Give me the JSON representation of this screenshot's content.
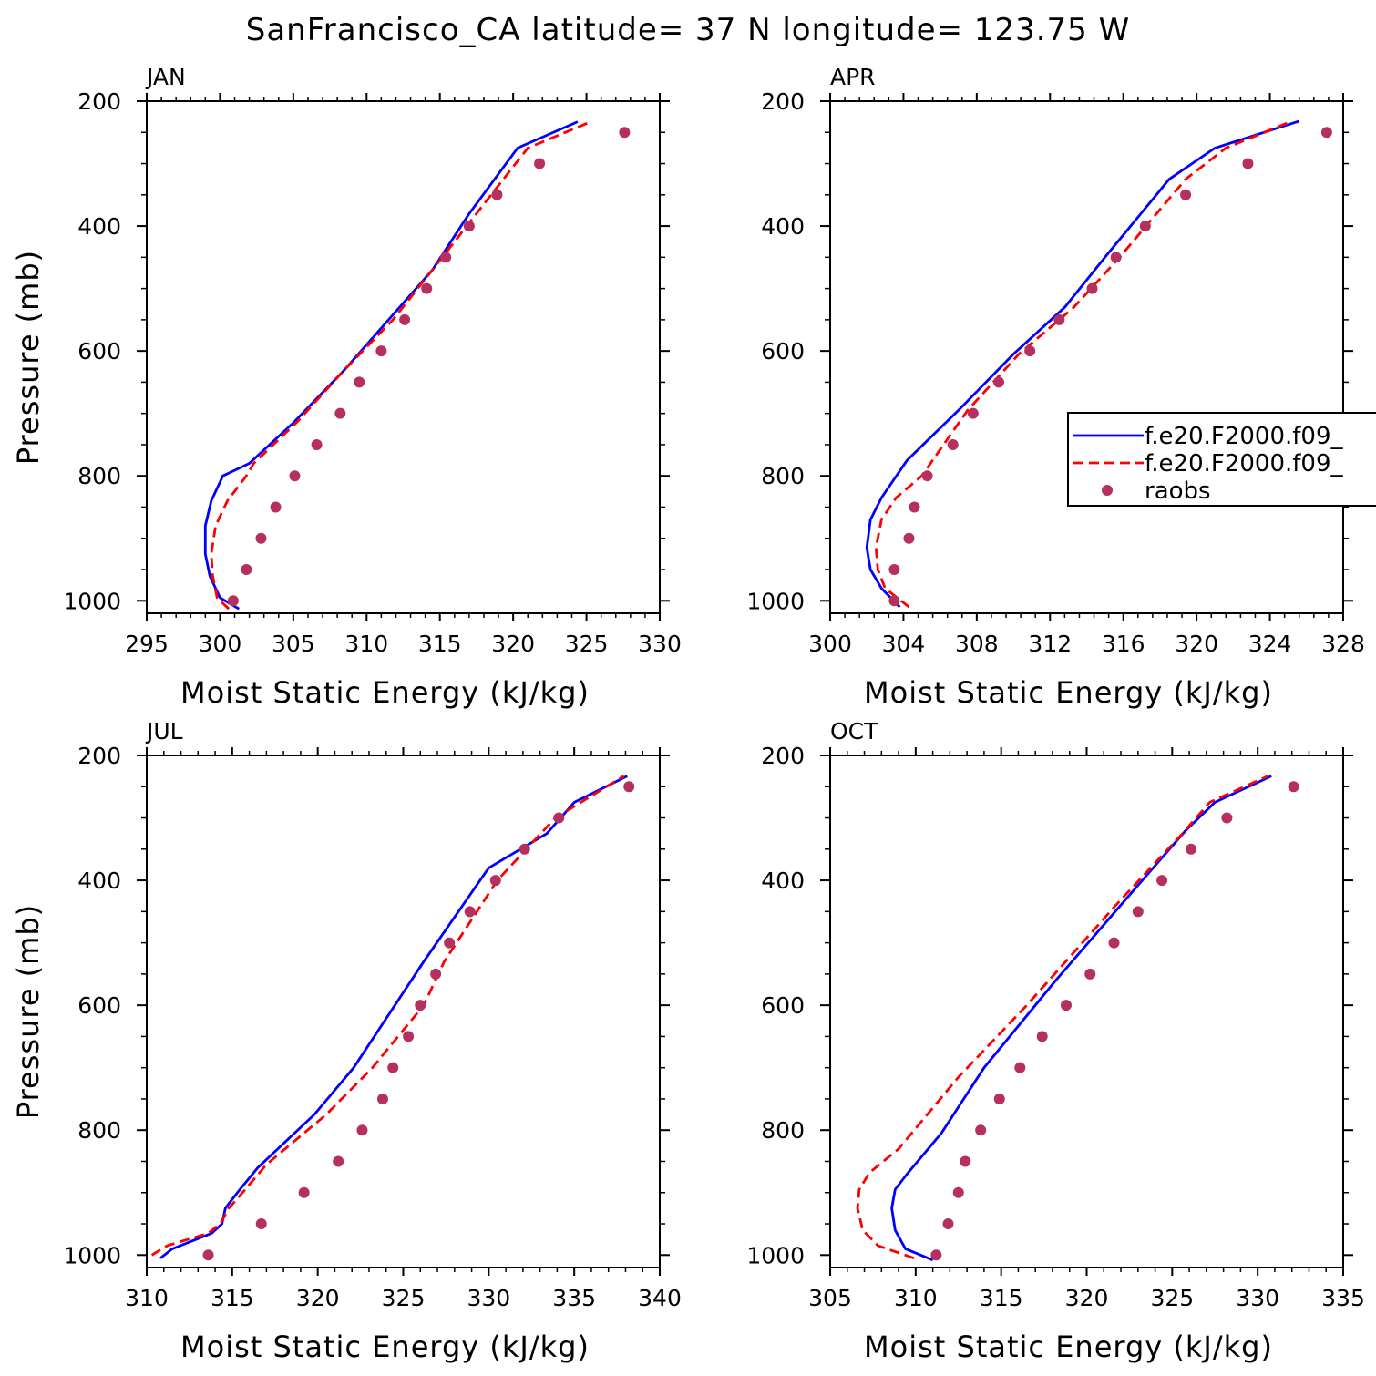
{
  "title": "SanFrancisco_CA  latitude= 37 N longitude= 123.75 W",
  "legend": {
    "entries": [
      {
        "label": "f.e20.F2000.f09_",
        "color": "#0000ff",
        "style": "solid"
      },
      {
        "label": "f.e20.F2000.f09_",
        "color": "#ff0000",
        "style": "dashed"
      },
      {
        "label": "raobs",
        "color": "#b5305f",
        "style": "marker"
      }
    ]
  },
  "chart_data": [
    {
      "type": "line",
      "title": "JAN",
      "xlabel": "Moist Static Energy (kJ/kg)",
      "ylabel": "Pressure (mb)",
      "xlim": [
        295,
        330
      ],
      "ylim": [
        1020,
        200
      ],
      "xticks": [
        "295",
        "300",
        "305",
        "310",
        "315",
        "320",
        "325",
        "330"
      ],
      "yticks": [
        "200",
        "400",
        "600",
        "800",
        "1000"
      ],
      "series": [
        {
          "name": "f.e20.F2000.f09_",
          "color": "#0000ff",
          "style": "solid",
          "x": [
            301.3,
            300.0,
            299.3,
            299.0,
            299.0,
            299.4,
            300.2,
            302.0,
            305.0,
            308.5,
            311.5,
            314.5,
            317.0,
            320.3,
            324.4
          ],
          "y": [
            1013,
            995,
            960,
            925,
            880,
            840,
            800,
            780,
            715,
            630,
            550,
            470,
            380,
            275,
            233
          ]
        },
        {
          "name": "f.e20.F2000.f09_",
          "color": "#ff0000",
          "style": "dashed",
          "x": [
            300.6,
            299.8,
            299.5,
            299.4,
            299.7,
            300.5,
            301.8,
            302.3,
            305.2,
            308.5,
            311.8,
            314.5,
            317.5,
            321.0,
            325.3
          ],
          "y": [
            1013,
            995,
            960,
            925,
            880,
            840,
            800,
            780,
            715,
            630,
            550,
            470,
            380,
            275,
            233
          ]
        },
        {
          "name": "raobs",
          "color": "#b5305f",
          "style": "marker",
          "x": [
            300.9,
            301.8,
            302.8,
            303.8,
            305.1,
            306.6,
            308.2,
            309.5,
            311.0,
            312.6,
            314.1,
            315.4,
            317.0,
            318.9,
            321.8,
            327.6
          ],
          "y": [
            1000,
            950,
            900,
            850,
            800,
            750,
            700,
            650,
            600,
            550,
            500,
            450,
            400,
            350,
            300,
            250
          ]
        }
      ]
    },
    {
      "type": "line",
      "title": "APR",
      "xlabel": "Moist Static Energy (kJ/kg)",
      "ylabel": "",
      "xlim": [
        300,
        328
      ],
      "ylim": [
        1020,
        200
      ],
      "xticks": [
        "300",
        "304",
        "308",
        "312",
        "316",
        "320",
        "324",
        "328"
      ],
      "yticks": [
        "200",
        "400",
        "600",
        "800",
        "1000"
      ],
      "series": [
        {
          "name": "f.e20.F2000.f09_",
          "color": "#0000ff",
          "style": "solid",
          "x": [
            303.8,
            302.8,
            302.2,
            302.0,
            302.2,
            302.8,
            304.2,
            307.0,
            310.0,
            312.8,
            315.0,
            318.5,
            321.0,
            325.6
          ],
          "y": [
            1010,
            980,
            950,
            915,
            870,
            835,
            775,
            695,
            605,
            530,
            450,
            325,
            275,
            232
          ]
        },
        {
          "name": "f.e20.F2000.f09_",
          "color": "#ff0000",
          "style": "dashed",
          "x": [
            304.3,
            303.0,
            302.6,
            302.5,
            302.8,
            303.6,
            305.0,
            307.5,
            310.3,
            313.3,
            315.8,
            319.4,
            321.6,
            325.2
          ],
          "y": [
            1010,
            980,
            950,
            915,
            870,
            835,
            800,
            695,
            605,
            530,
            450,
            325,
            275,
            232
          ]
        },
        {
          "name": "raobs",
          "color": "#b5305f",
          "style": "marker",
          "x": [
            303.5,
            303.5,
            304.3,
            304.6,
            305.3,
            306.7,
            307.8,
            309.2,
            310.9,
            312.5,
            314.3,
            315.6,
            317.2,
            319.4,
            322.8,
            327.1
          ],
          "y": [
            1000,
            950,
            900,
            850,
            800,
            750,
            700,
            650,
            600,
            550,
            500,
            450,
            400,
            350,
            300,
            250
          ]
        }
      ]
    },
    {
      "type": "line",
      "title": "JUL",
      "xlabel": "Moist Static Energy (kJ/kg)",
      "ylabel": "Pressure (mb)",
      "xlim": [
        310,
        340
      ],
      "ylim": [
        1020,
        200
      ],
      "xticks": [
        "310",
        "315",
        "320",
        "325",
        "330",
        "335",
        "340"
      ],
      "yticks": [
        "200",
        "400",
        "600",
        "800",
        "1000"
      ],
      "series": [
        {
          "name": "f.e20.F2000.f09_",
          "color": "#0000ff",
          "style": "solid",
          "x": [
            310.8,
            311.5,
            313.8,
            314.4,
            314.6,
            315.3,
            316.5,
            319.8,
            322.1,
            326.2,
            330.0,
            333.4,
            335.0,
            338.1
          ],
          "y": [
            1005,
            990,
            965,
            950,
            925,
            900,
            860,
            775,
            700,
            530,
            380,
            325,
            275,
            233
          ]
        },
        {
          "name": "f.e20.F2000.f09_",
          "color": "#ff0000",
          "style": "dashed",
          "x": [
            310.3,
            311.2,
            313.6,
            314.3,
            314.8,
            315.6,
            317.0,
            320.5,
            323.2,
            326.2,
            327.4,
            330.5,
            333.9,
            337.9
          ],
          "y": [
            1000,
            985,
            965,
            950,
            925,
            900,
            855,
            775,
            700,
            600,
            530,
            400,
            300,
            233
          ]
        },
        {
          "name": "raobs",
          "color": "#b5305f",
          "style": "marker",
          "x": [
            313.6,
            316.7,
            319.2,
            321.2,
            322.6,
            323.8,
            324.4,
            325.3,
            326.0,
            326.9,
            327.7,
            328.9,
            330.4,
            332.1,
            334.1,
            338.2
          ],
          "y": [
            1000,
            950,
            900,
            850,
            800,
            750,
            700,
            650,
            600,
            550,
            500,
            450,
            400,
            350,
            300,
            250
          ]
        }
      ]
    },
    {
      "type": "line",
      "title": "OCT",
      "xlabel": "Moist Static Energy (kJ/kg)",
      "ylabel": "",
      "xlim": [
        305,
        335
      ],
      "ylim": [
        1020,
        200
      ],
      "xticks": [
        "305",
        "310",
        "315",
        "320",
        "325",
        "330",
        "335"
      ],
      "yticks": [
        "200",
        "400",
        "600",
        "800",
        "1000"
      ],
      "series": [
        {
          "name": "f.e20.F2000.f09_",
          "color": "#0000ff",
          "style": "solid",
          "x": [
            311.0,
            309.4,
            308.8,
            308.6,
            308.8,
            309.5,
            311.5,
            314.0,
            318.2,
            322.3,
            325.8,
            327.5,
            330.8
          ],
          "y": [
            1008,
            990,
            960,
            925,
            895,
            870,
            805,
            700,
            560,
            430,
            320,
            275,
            233
          ]
        },
        {
          "name": "f.e20.F2000.f09_",
          "color": "#ff0000",
          "style": "dashed",
          "x": [
            309.9,
            307.8,
            306.9,
            306.6,
            306.7,
            307.3,
            309.0,
            312.5,
            316.5,
            321.7,
            325.6,
            327.2,
            330.6
          ],
          "y": [
            1005,
            985,
            960,
            925,
            895,
            868,
            830,
            715,
            600,
            440,
            325,
            275,
            233
          ]
        },
        {
          "name": "raobs",
          "color": "#b5305f",
          "style": "marker",
          "x": [
            311.2,
            311.9,
            312.5,
            312.9,
            313.8,
            314.9,
            316.1,
            317.4,
            318.8,
            320.2,
            321.6,
            323.0,
            324.4,
            326.1,
            328.2,
            332.1
          ],
          "y": [
            1000,
            950,
            900,
            850,
            800,
            750,
            700,
            650,
            600,
            550,
            500,
            450,
            400,
            350,
            300,
            250
          ]
        }
      ]
    }
  ]
}
